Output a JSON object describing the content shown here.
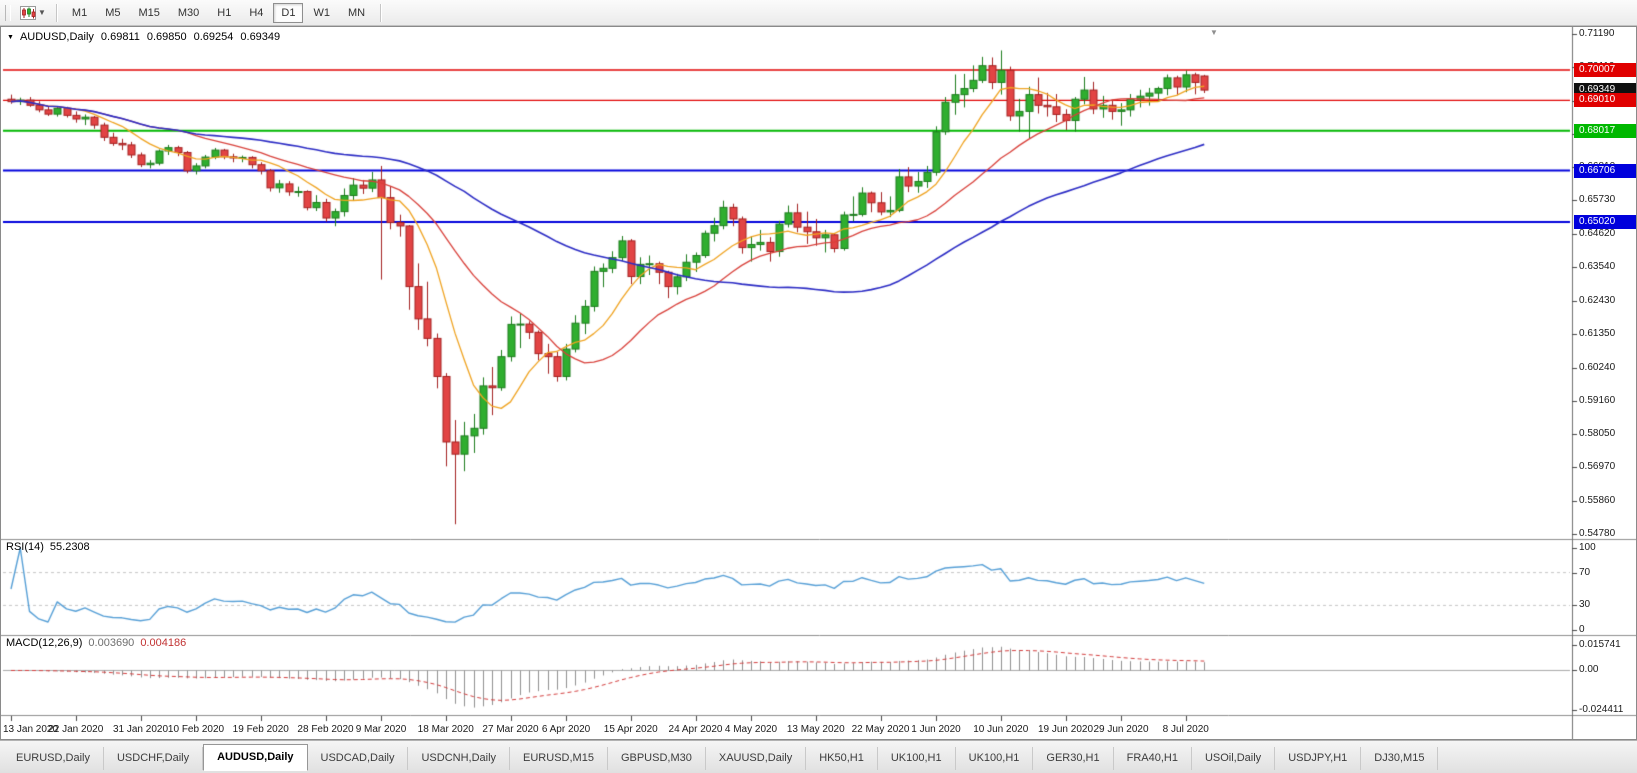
{
  "toolbar": {
    "timeframes": [
      "M1",
      "M5",
      "M15",
      "M30",
      "H1",
      "H4",
      "D1",
      "W1",
      "MN"
    ],
    "active_timeframe": "D1"
  },
  "chart": {
    "legend": {
      "symbol": "AUDUSD,Daily",
      "open": "0.69811",
      "high": "0.69850",
      "low": "0.69254",
      "close": "0.69349"
    }
  },
  "chart_data": {
    "type": "candlestick",
    "symbol": "AUDUSD",
    "timeframe": "Daily",
    "y_range": [
      0.5478,
      0.7119
    ],
    "y_ticks": [
      "0.71190",
      "0.70110",
      "0.69000",
      "0.67920",
      "0.66810",
      "0.65730",
      "0.64620",
      "0.63540",
      "0.62430",
      "0.61350",
      "0.60240",
      "0.59160",
      "0.58050",
      "0.56970",
      "0.55860",
      "0.54780"
    ],
    "x_labels": [
      {
        "index": 0,
        "text": "13 Jan 2020"
      },
      {
        "index": 7,
        "text": "22 Jan 2020"
      },
      {
        "index": 14,
        "text": "31 Jan 2020"
      },
      {
        "index": 20,
        "text": "10 Feb 2020"
      },
      {
        "index": 27,
        "text": "19 Feb 2020"
      },
      {
        "index": 34,
        "text": "28 Feb 2020"
      },
      {
        "index": 40,
        "text": "9 Mar 2020"
      },
      {
        "index": 47,
        "text": "18 Mar 2020"
      },
      {
        "index": 54,
        "text": "27 Mar 2020"
      },
      {
        "index": 60,
        "text": "6 Apr 2020"
      },
      {
        "index": 67,
        "text": "15 Apr 2020"
      },
      {
        "index": 74,
        "text": "24 Apr 2020"
      },
      {
        "index": 80,
        "text": "4 May 2020"
      },
      {
        "index": 87,
        "text": "13 May 2020"
      },
      {
        "index": 94,
        "text": "22 May 2020"
      },
      {
        "index": 100,
        "text": "1 Jun 2020"
      },
      {
        "index": 107,
        "text": "10 Jun 2020"
      },
      {
        "index": 114,
        "text": "19 Jun 2020"
      },
      {
        "index": 120,
        "text": "29 Jun 2020"
      },
      {
        "index": 127,
        "text": "8 Jul 2020"
      }
    ],
    "levels": [
      {
        "value": 0.70007,
        "label": "0.70007",
        "color": "#e00000",
        "line_width": 1.4
      },
      {
        "value": 0.69349,
        "label": "0.69349",
        "color": "#101010",
        "line_width": 0,
        "current_price": true
      },
      {
        "value": 0.6901,
        "label": "0.69010",
        "color": "#e00000",
        "line_width": 1.4
      },
      {
        "value": 0.68017,
        "label": "0.68017",
        "color": "#00b800",
        "line_width": 2
      },
      {
        "value": 0.66706,
        "label": "0.66706",
        "color": "#0000dc",
        "line_width": 2
      },
      {
        "value": 0.6502,
        "label": "0.65020",
        "color": "#0000dc",
        "line_width": 2
      }
    ],
    "indicators": {
      "rsi": {
        "label": "RSI(14)",
        "value": "55.2308",
        "scale_labels": [
          "100",
          "70",
          "30",
          "0"
        ],
        "dashed_levels": [
          70,
          30
        ],
        "color": "#569fd6"
      },
      "macd": {
        "label": "MACD(12,26,9)",
        "value_main": "0.003690",
        "value_signal": "0.004186",
        "scale_labels": [
          "0.015741",
          "0.00",
          "-0.024411"
        ],
        "scale_max": 0.015741,
        "scale_min": -0.024411,
        "histogram_color": "#8f8f8f",
        "signal_color": "#d23b3b"
      }
    },
    "moving_averages": [
      {
        "period": 8,
        "color": "#efa321",
        "width": 1.3
      },
      {
        "period": 20,
        "color": "#d8403a",
        "width": 1.3
      },
      {
        "period": 50,
        "color": "#2b2bc4",
        "width": 1.6
      }
    ],
    "style": {
      "candle_up": "#2fae2f",
      "candle_up_border": "#1d7c1d",
      "candle_down": "#e24444",
      "candle_down_border": "#a32020"
    },
    "ohlc": [
      [
        0.6905,
        0.692,
        0.689,
        0.6897
      ],
      [
        0.6897,
        0.691,
        0.6886,
        0.6902
      ],
      [
        0.6902,
        0.6912,
        0.688,
        0.6885
      ],
      [
        0.6885,
        0.6898,
        0.6862,
        0.687
      ],
      [
        0.687,
        0.688,
        0.685,
        0.6856
      ],
      [
        0.6856,
        0.6882,
        0.6848,
        0.6875
      ],
      [
        0.6875,
        0.688,
        0.6845,
        0.6852
      ],
      [
        0.6852,
        0.6865,
        0.6828,
        0.684
      ],
      [
        0.684,
        0.6855,
        0.682,
        0.6846
      ],
      [
        0.6846,
        0.685,
        0.6808,
        0.682
      ],
      [
        0.682,
        0.6828,
        0.6768,
        0.678
      ],
      [
        0.678,
        0.6795,
        0.6752,
        0.676
      ],
      [
        0.676,
        0.6775,
        0.6738,
        0.6755
      ],
      [
        0.6755,
        0.6765,
        0.6712,
        0.6722
      ],
      [
        0.6722,
        0.673,
        0.6682,
        0.669
      ],
      [
        0.669,
        0.6705,
        0.6678,
        0.6695
      ],
      [
        0.6695,
        0.674,
        0.6688,
        0.6735
      ],
      [
        0.6735,
        0.6755,
        0.6722,
        0.6746
      ],
      [
        0.6746,
        0.6752,
        0.6718,
        0.673
      ],
      [
        0.673,
        0.6735,
        0.6662,
        0.667
      ],
      [
        0.667,
        0.6695,
        0.6658,
        0.6686
      ],
      [
        0.6686,
        0.6722,
        0.6678,
        0.6715
      ],
      [
        0.6715,
        0.6745,
        0.6708,
        0.6738
      ],
      [
        0.6738,
        0.6742,
        0.6708,
        0.6716
      ],
      [
        0.6716,
        0.6726,
        0.6698,
        0.6712
      ],
      [
        0.6712,
        0.672,
        0.6698,
        0.6714
      ],
      [
        0.6714,
        0.6718,
        0.6678,
        0.669
      ],
      [
        0.669,
        0.6698,
        0.6658,
        0.667
      ],
      [
        0.667,
        0.6676,
        0.6602,
        0.6614
      ],
      [
        0.6614,
        0.664,
        0.6598,
        0.6627
      ],
      [
        0.6627,
        0.6636,
        0.6588,
        0.6601
      ],
      [
        0.6601,
        0.6618,
        0.6585,
        0.6602
      ],
      [
        0.6602,
        0.6606,
        0.654,
        0.6549
      ],
      [
        0.6549,
        0.659,
        0.6538,
        0.6566
      ],
      [
        0.6566,
        0.6578,
        0.6503,
        0.6515
      ],
      [
        0.6515,
        0.6546,
        0.6488,
        0.6536
      ],
      [
        0.6536,
        0.6612,
        0.652,
        0.6589
      ],
      [
        0.6589,
        0.6646,
        0.6574,
        0.6623
      ],
      [
        0.6623,
        0.664,
        0.6594,
        0.6613
      ],
      [
        0.6613,
        0.6666,
        0.66,
        0.664
      ],
      [
        0.664,
        0.6686,
        0.6313,
        0.6582
      ],
      [
        0.6582,
        0.662,
        0.6478,
        0.65
      ],
      [
        0.65,
        0.6526,
        0.6454,
        0.6489
      ],
      [
        0.6489,
        0.6492,
        0.6214,
        0.629
      ],
      [
        0.629,
        0.6366,
        0.6148,
        0.6184
      ],
      [
        0.6184,
        0.6306,
        0.6094,
        0.612
      ],
      [
        0.612,
        0.6136,
        0.5956,
        0.5995
      ],
      [
        0.5995,
        0.6006,
        0.57,
        0.578
      ],
      [
        0.578,
        0.5852,
        0.551,
        0.574
      ],
      [
        0.574,
        0.5846,
        0.5684,
        0.58
      ],
      [
        0.58,
        0.5872,
        0.5744,
        0.5825
      ],
      [
        0.5825,
        0.5992,
        0.5804,
        0.5964
      ],
      [
        0.5964,
        0.6026,
        0.5868,
        0.5958
      ],
      [
        0.5958,
        0.6082,
        0.5948,
        0.606
      ],
      [
        0.606,
        0.6192,
        0.6044,
        0.6166
      ],
      [
        0.6166,
        0.6202,
        0.6088,
        0.6167
      ],
      [
        0.6167,
        0.6176,
        0.6118,
        0.614
      ],
      [
        0.614,
        0.6146,
        0.6048,
        0.607
      ],
      [
        0.607,
        0.6102,
        0.6004,
        0.606
      ],
      [
        0.606,
        0.6076,
        0.5978,
        0.5995
      ],
      [
        0.5995,
        0.6102,
        0.5982,
        0.6085
      ],
      [
        0.6085,
        0.6196,
        0.6074,
        0.617
      ],
      [
        0.617,
        0.6246,
        0.6134,
        0.6225
      ],
      [
        0.6225,
        0.6356,
        0.6208,
        0.634
      ],
      [
        0.634,
        0.6366,
        0.6288,
        0.635
      ],
      [
        0.635,
        0.6406,
        0.6334,
        0.6385
      ],
      [
        0.6385,
        0.6456,
        0.6374,
        0.644
      ],
      [
        0.644,
        0.6446,
        0.6298,
        0.6323
      ],
      [
        0.6323,
        0.6386,
        0.6298,
        0.6363
      ],
      [
        0.6363,
        0.6392,
        0.6328,
        0.6365
      ],
      [
        0.6365,
        0.6372,
        0.6298,
        0.6337
      ],
      [
        0.6337,
        0.6342,
        0.6252,
        0.629
      ],
      [
        0.629,
        0.6332,
        0.6264,
        0.6322
      ],
      [
        0.6322,
        0.6396,
        0.6308,
        0.637
      ],
      [
        0.637,
        0.6402,
        0.6338,
        0.6392
      ],
      [
        0.6392,
        0.6474,
        0.6384,
        0.6465
      ],
      [
        0.6465,
        0.6516,
        0.6438,
        0.649
      ],
      [
        0.649,
        0.6572,
        0.6478,
        0.655
      ],
      [
        0.655,
        0.6562,
        0.6488,
        0.6512
      ],
      [
        0.6512,
        0.652,
        0.6398,
        0.6418
      ],
      [
        0.6418,
        0.6456,
        0.6372,
        0.6428
      ],
      [
        0.6428,
        0.6476,
        0.6408,
        0.6435
      ],
      [
        0.6435,
        0.6452,
        0.6372,
        0.6405
      ],
      [
        0.6405,
        0.6506,
        0.6388,
        0.6495
      ],
      [
        0.6495,
        0.6556,
        0.6484,
        0.6532
      ],
      [
        0.6532,
        0.6562,
        0.6468,
        0.6485
      ],
      [
        0.6485,
        0.6536,
        0.643,
        0.647
      ],
      [
        0.647,
        0.6512,
        0.6424,
        0.645
      ],
      [
        0.645,
        0.6476,
        0.6402,
        0.646
      ],
      [
        0.646,
        0.6466,
        0.6402,
        0.6415
      ],
      [
        0.6415,
        0.6536,
        0.6408,
        0.6525
      ],
      [
        0.6525,
        0.6586,
        0.6504,
        0.6527
      ],
      [
        0.6527,
        0.6616,
        0.652,
        0.6597
      ],
      [
        0.6597,
        0.6602,
        0.6534,
        0.6565
      ],
      [
        0.6565,
        0.66,
        0.6524,
        0.6535
      ],
      [
        0.6535,
        0.6586,
        0.6518,
        0.654
      ],
      [
        0.654,
        0.6676,
        0.6534,
        0.665
      ],
      [
        0.665,
        0.6682,
        0.66,
        0.662
      ],
      [
        0.662,
        0.6666,
        0.6598,
        0.6635
      ],
      [
        0.6635,
        0.6686,
        0.6614,
        0.6665
      ],
      [
        0.6665,
        0.6816,
        0.6654,
        0.6798
      ],
      [
        0.6798,
        0.6912,
        0.6788,
        0.6895
      ],
      [
        0.6895,
        0.6986,
        0.6854,
        0.692
      ],
      [
        0.692,
        0.6988,
        0.6878,
        0.694
      ],
      [
        0.694,
        0.7016,
        0.6928,
        0.6967
      ],
      [
        0.6967,
        0.7044,
        0.6958,
        0.7015
      ],
      [
        0.7015,
        0.7042,
        0.6938,
        0.696
      ],
      [
        0.696,
        0.7065,
        0.692,
        0.7
      ],
      [
        0.7,
        0.7012,
        0.6834,
        0.685
      ],
      [
        0.685,
        0.6906,
        0.6798,
        0.6865
      ],
      [
        0.6865,
        0.6946,
        0.6776,
        0.692
      ],
      [
        0.692,
        0.6976,
        0.6858,
        0.6885
      ],
      [
        0.6885,
        0.6926,
        0.6848,
        0.688
      ],
      [
        0.688,
        0.6922,
        0.683,
        0.6855
      ],
      [
        0.6855,
        0.6872,
        0.6804,
        0.6835
      ],
      [
        0.6835,
        0.6912,
        0.6798,
        0.6905
      ],
      [
        0.6905,
        0.6978,
        0.6888,
        0.6935
      ],
      [
        0.6935,
        0.6962,
        0.6856,
        0.6873
      ],
      [
        0.6873,
        0.6916,
        0.6844,
        0.6885
      ],
      [
        0.6885,
        0.6902,
        0.6838,
        0.6865
      ],
      [
        0.6865,
        0.6892,
        0.6818,
        0.687
      ],
      [
        0.687,
        0.6922,
        0.6848,
        0.6905
      ],
      [
        0.6905,
        0.6936,
        0.6878,
        0.6915
      ],
      [
        0.6915,
        0.6942,
        0.6884,
        0.6925
      ],
      [
        0.6925,
        0.6946,
        0.6898,
        0.694
      ],
      [
        0.694,
        0.6986,
        0.6918,
        0.6975
      ],
      [
        0.6975,
        0.6982,
        0.6918,
        0.6945
      ],
      [
        0.6945,
        0.6999,
        0.6928,
        0.6985
      ],
      [
        0.6985,
        0.6992,
        0.6921,
        0.696
      ],
      [
        0.69811,
        0.6985,
        0.69254,
        0.69349
      ]
    ]
  },
  "tabs": [
    {
      "label": "EURUSD,Daily",
      "active": false
    },
    {
      "label": "USDCHF,Daily",
      "active": false
    },
    {
      "label": "AUDUSD,Daily",
      "active": true
    },
    {
      "label": "USDCAD,Daily",
      "active": false
    },
    {
      "label": "USDCNH,Daily",
      "active": false
    },
    {
      "label": "EURUSD,M15",
      "active": false
    },
    {
      "label": "GBPUSD,M30",
      "active": false
    },
    {
      "label": "XAUUSD,Daily",
      "active": false
    },
    {
      "label": "HK50,H1",
      "active": false
    },
    {
      "label": "UK100,H1",
      "active": false
    },
    {
      "label": "UK100,H1",
      "active": false
    },
    {
      "label": "GER30,H1",
      "active": false
    },
    {
      "label": "FRA40,H1",
      "active": false
    },
    {
      "label": "USOil,Daily",
      "active": false
    },
    {
      "label": "USDJPY,H1",
      "active": false
    },
    {
      "label": "DJ30,M15",
      "active": false
    }
  ]
}
